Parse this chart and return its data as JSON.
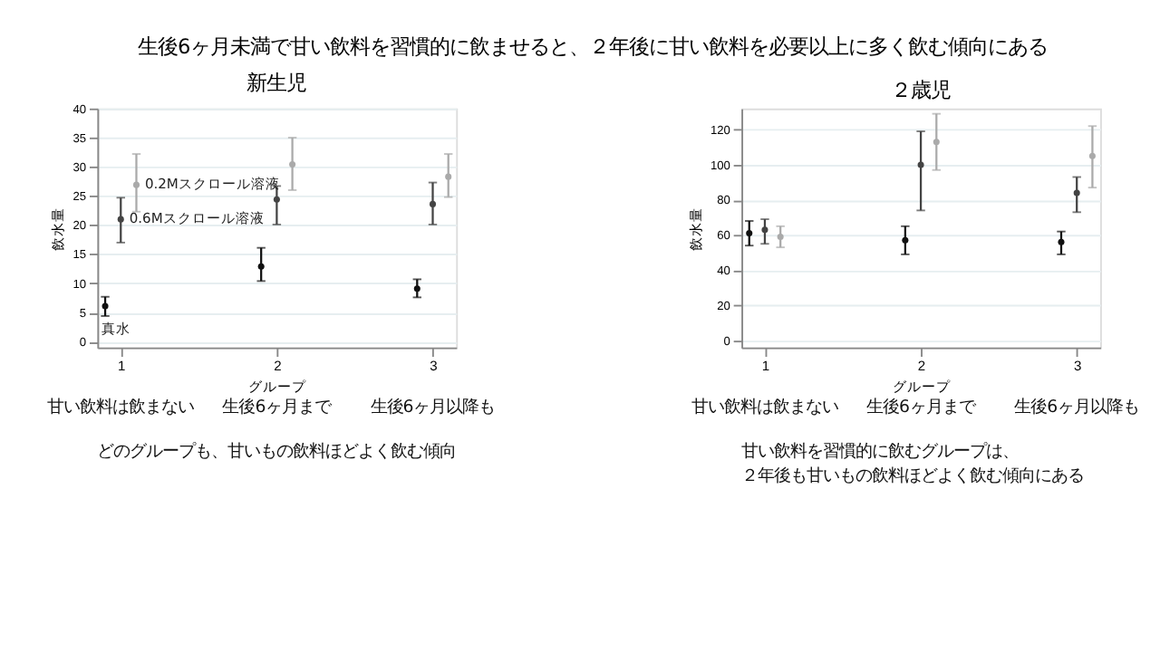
{
  "chart_data": [
    {
      "type": "scatter",
      "title": "生後6ヶ月未満で甘い飲料を習慣的に飲ませると、２年後に甘い飲料を必要以上に多く飲む傾向にある",
      "subtitle": "新生児",
      "xlabel": "グループ",
      "ylabel": "飲水量",
      "xlim": [
        0.85,
        3.15
      ],
      "xticks": [
        1,
        2,
        3
      ],
      "ylim": [
        -1,
        40
      ],
      "yticks": [
        0,
        5,
        10,
        15,
        20,
        25,
        30,
        35,
        40
      ],
      "grid": "y",
      "marker": "circle",
      "series": [
        {
          "name": "真水",
          "color": "#111111",
          "x": [
            0.9,
            1.9,
            2.9
          ],
          "values": [
            6.1,
            12.9,
            9.1
          ],
          "errors": [
            [
              4.4,
              7.7
            ],
            [
              10.4,
              16.1
            ],
            [
              7.6,
              10.7
            ]
          ]
        },
        {
          "name": "0.6Mスクロール溶液",
          "color": "#444444",
          "x": [
            1,
            2,
            3
          ],
          "values": [
            21.0,
            24.4,
            23.6
          ],
          "errors": [
            [
              17.0,
              24.7
            ],
            [
              20.1,
              26.7
            ],
            [
              20.1,
              27.3
            ]
          ]
        },
        {
          "name": "0.2Mスクロール溶液",
          "color": "#aaaaaa",
          "x": [
            1.1,
            2.1,
            3.1
          ],
          "values": [
            26.9,
            30.4,
            28.3
          ],
          "errors": [
            [
              22.3,
              32.2
            ],
            [
              26.0,
              35.0
            ],
            [
              24.8,
              32.2
            ]
          ]
        }
      ],
      "annotations": [
        "甘い飲料は飲まない",
        "生後6ヶ月まで",
        "生後6ヶ月以降も",
        "どのグループも、甘いもの飲料ほどよく飲む傾向"
      ]
    },
    {
      "type": "scatter",
      "subtitle": "２歳児",
      "xlabel": "グループ",
      "ylabel": "飲水量",
      "xlim": [
        0.85,
        3.15
      ],
      "xticks": [
        1,
        2,
        3
      ],
      "ylim": [
        -4,
        132
      ],
      "yticks": [
        0,
        20,
        40,
        60,
        80,
        100,
        120
      ],
      "grid": "y",
      "marker": "circle",
      "series": [
        {
          "color": "#111111",
          "x": [
            0.9,
            1.9,
            2.9
          ],
          "values": [
            61,
            57,
            56
          ],
          "errors": [
            [
              54,
              68
            ],
            [
              49,
              65
            ],
            [
              49,
              62
            ]
          ]
        },
        {
          "color": "#444444",
          "x": [
            1,
            2,
            3
          ],
          "values": [
            63,
            100,
            84
          ],
          "errors": [
            [
              55,
              69
            ],
            [
              74,
              119
            ],
            [
              73,
              93
            ]
          ]
        },
        {
          "color": "#aaaaaa",
          "x": [
            1.1,
            2.1,
            3.1
          ],
          "values": [
            59,
            113,
            105
          ],
          "errors": [
            [
              53,
              65
            ],
            [
              97,
              129
            ],
            [
              87,
              122
            ]
          ]
        }
      ],
      "annotations": [
        "甘い飲料は飲まない",
        "生後6ヶ月まで",
        "生後6ヶ月以降も",
        "甘い飲料を習慣的に飲むグループは、２年後も甘いもの飲料ほどよく飲む傾向にある"
      ]
    }
  ]
}
